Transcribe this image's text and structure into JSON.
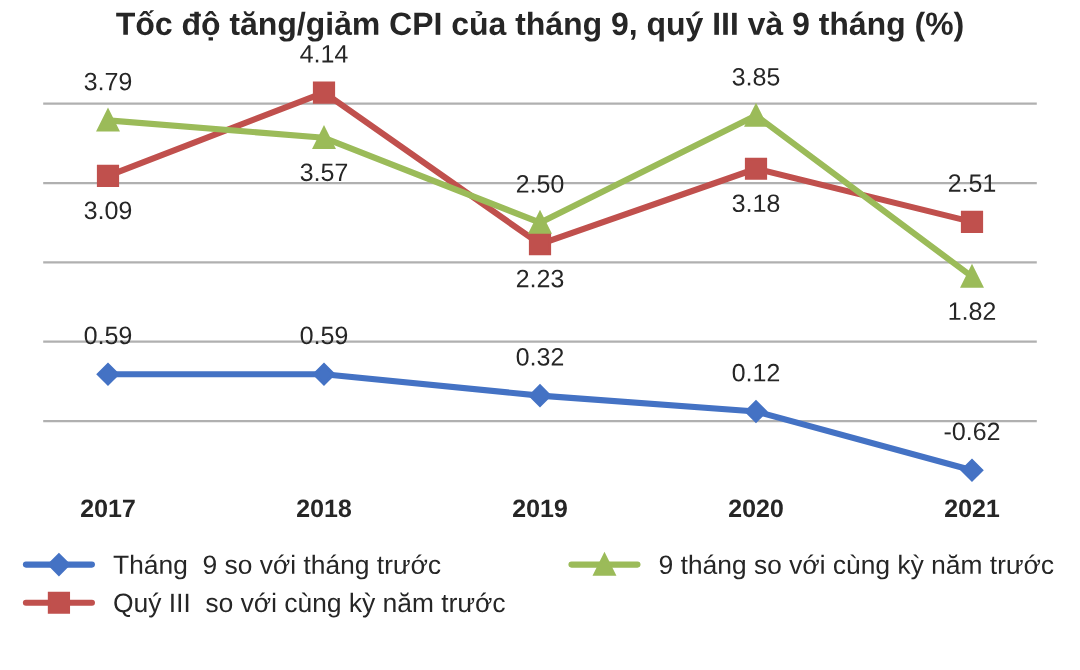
{
  "chart_data": {
    "type": "line",
    "title": "Tốc độ tăng/giảm CPI của tháng 9, quý III và 9 tháng (%)",
    "categories": [
      "2017",
      "2018",
      "2019",
      "2020",
      "2021"
    ],
    "series": [
      {
        "name": "Tháng  9 so với tháng trước",
        "color": "#4472c4",
        "marker": "diamond",
        "values": [
          0.59,
          0.59,
          0.32,
          0.12,
          -0.62
        ],
        "value_labels": [
          "0.59",
          "0.59",
          "0.32",
          "0.12",
          "-0.62"
        ]
      },
      {
        "name": "Quý III  so với cùng kỳ năm trước",
        "color": "#c0504d",
        "marker": "square",
        "values": [
          3.09,
          4.14,
          2.23,
          3.18,
          2.51
        ],
        "value_labels": [
          "3.09",
          "4.14",
          "2.23",
          "3.18",
          "2.51"
        ]
      },
      {
        "name": "9 tháng so với cùng kỳ năm trước",
        "color": "#9bbb59",
        "marker": "triangle",
        "values": [
          3.79,
          3.57,
          2.5,
          3.85,
          1.82
        ],
        "value_labels": [
          "3.79",
          "3.57",
          "2.50",
          "3.85",
          "1.82"
        ]
      }
    ],
    "tick_labels": "x",
    "grid": "y",
    "legend": "bottom",
    "line_style": "solid"
  }
}
